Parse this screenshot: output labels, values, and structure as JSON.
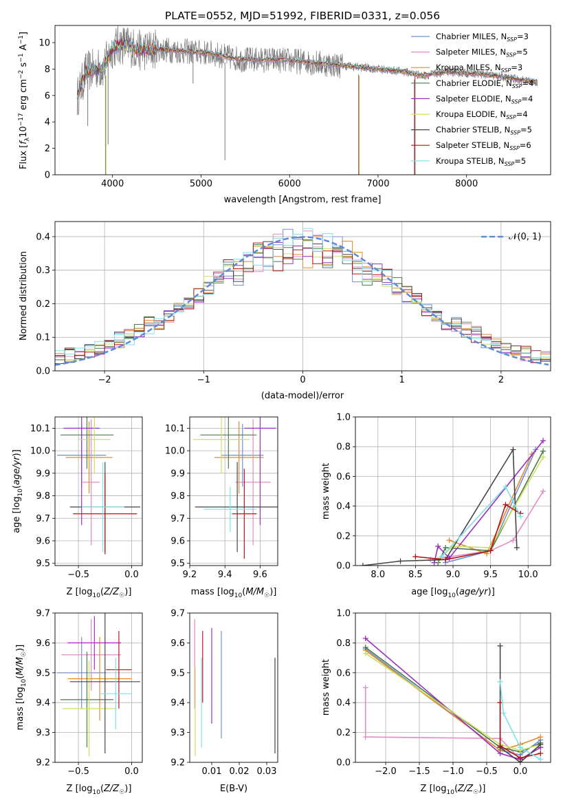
{
  "figure_title": "PLATE=0552, MJD=51992, FIBERID=0331, z=0.056",
  "colors": {
    "Chabrier MILES": "#6f8fd8",
    "Salpeter MILES": "#e38ac4",
    "Kroupa MILES": "#e08a2c",
    "Chabrier ELODIE": "#4a7a4a",
    "Salpeter ELODIE": "#9a2fbf",
    "Kroupa ELODIE": "#cde05a",
    "Chabrier STELIB": "#444444",
    "Salpeter STELIB": "#b01515",
    "Kroupa STELIB": "#7fdfe6",
    "data": "#777777",
    "gauss": "#5b8bd9"
  },
  "chart_data": [
    {
      "id": "spectrum",
      "type": "line",
      "xlabel": "wavelength [Angstrom, rest frame]",
      "ylabel": "Flux [f_λ10^{-17} erg cm^{-2} s^{-1} A^{-1}]",
      "xlim": [
        3350,
        8950
      ],
      "ylim": [
        0,
        11.3
      ],
      "xticks": [
        4000,
        5000,
        6000,
        7000,
        8000
      ],
      "yticks": [
        0,
        2,
        4,
        6,
        8,
        10
      ],
      "legend_position": "upper right",
      "legend": [
        {
          "label": "Chabrier MILES, N",
          "sub": "SSP",
          "eq": "=3"
        },
        {
          "label": "Salpeter MILES, N",
          "sub": "SSP",
          "eq": "=5"
        },
        {
          "label": "Kroupa MILES, N",
          "sub": "SSP",
          "eq": "=3"
        },
        {
          "label": "Chabrier ELODIE, N",
          "sub": "SSP",
          "eq": "=4"
        },
        {
          "label": "Salpeter ELODIE, N",
          "sub": "SSP",
          "eq": "=4"
        },
        {
          "label": "Kroupa ELODIE, N",
          "sub": "SSP",
          "eq": "=4"
        },
        {
          "label": "Chabrier STELIB, N",
          "sub": "SSP",
          "eq": "=5"
        },
        {
          "label": "Salpeter STELIB, N",
          "sub": "SSP",
          "eq": "=6"
        },
        {
          "label": "Kroupa STELIB, N",
          "sub": "SSP",
          "eq": "=5"
        }
      ],
      "continuum": {
        "x": [
          3600,
          3700,
          3800,
          3900,
          4000,
          4100,
          4200,
          4300,
          4500,
          4700,
          4900,
          5100,
          5300,
          5500,
          5800,
          6100,
          6400,
          6700,
          7000,
          7300,
          7500,
          7800,
          8200,
          8600,
          8800
        ],
        "y": [
          5.8,
          7.8,
          8.0,
          8.1,
          9.6,
          9.9,
          9.7,
          9.4,
          9.5,
          9.4,
          9.3,
          9.2,
          8.9,
          8.7,
          8.7,
          8.6,
          8.4,
          8.2,
          8.0,
          7.8,
          7.5,
          7.8,
          7.6,
          7.2,
          7.0
        ]
      },
      "data_lines": [
        {
          "x": 3920,
          "y_from": 0,
          "y_to": 7.5
        },
        {
          "x": 6780,
          "y_from": 0,
          "y_to": 7.6
        },
        {
          "x": 7410,
          "y_from": 0,
          "y_to": 7.2
        },
        {
          "x": 5270,
          "y_from": 1.1,
          "y_to": 8.5
        },
        {
          "x": 4910,
          "y_from": 6.9,
          "y_to": 9.0
        },
        {
          "x": 3720,
          "y_from": 3.7,
          "y_to": 7.2
        },
        {
          "x": 3950,
          "y_from": 2.3,
          "y_to": 8.0
        }
      ]
    },
    {
      "id": "residuals",
      "type": "line",
      "xlabel": "(data-model)/error",
      "ylabel": "Normed distribution",
      "xlim": [
        -2.5,
        2.5
      ],
      "ylim": [
        0,
        0.445
      ],
      "xticks": [
        -2,
        -1,
        0,
        1,
        2
      ],
      "yticks": [
        0.0,
        0.1,
        0.2,
        0.3,
        0.4
      ],
      "grid": true,
      "legend_position": "upper right",
      "gauss_label": "𝒩(0, 1)",
      "bin_width": 0.1
    },
    {
      "id": "age_vs_Z",
      "type": "scatter",
      "xlabel": "Z [log10(Z/Z☉)]",
      "ylabel": "age  [log10(age/yr)]",
      "xlim": [
        -0.72,
        0.1
      ],
      "ylim": [
        9.49,
        10.15
      ],
      "xticks": [
        -0.5,
        0.0
      ],
      "yticks": [
        9.5,
        9.6,
        9.7,
        9.8,
        9.9,
        10.0,
        10.1
      ],
      "grid": true,
      "points": [
        {
          "model": "Chabrier MILES",
          "x": -0.47,
          "xerr": 0.23,
          "y": 9.98,
          "yerr": 0.14
        },
        {
          "model": "Salpeter MILES",
          "x": -0.38,
          "xerr": 0.08,
          "y": 9.86,
          "yerr": 0.28
        },
        {
          "model": "Kroupa MILES",
          "x": -0.4,
          "xerr": 0.22,
          "y": 9.97,
          "yerr": 0.16
        },
        {
          "model": "Chabrier ELODIE",
          "x": -0.42,
          "xerr": 0.25,
          "y": 10.07,
          "yerr": 0.15
        },
        {
          "model": "Salpeter ELODIE",
          "x": -0.47,
          "xerr": 0.17,
          "y": 10.1,
          "yerr": 0.43
        },
        {
          "model": "Kroupa ELODIE",
          "x": -0.35,
          "xerr": 0.15,
          "y": 10.05,
          "yerr": 0.15
        },
        {
          "model": "Chabrier STELIB",
          "x": -0.25,
          "xerr": 0.33,
          "y": 9.75,
          "yerr": 0.2
        },
        {
          "model": "Salpeter STELIB",
          "x": -0.25,
          "xerr": 0.3,
          "y": 9.72,
          "yerr": 0.18
        },
        {
          "model": "Kroupa STELIB",
          "x": -0.27,
          "xerr": 0.2,
          "y": 9.75,
          "yerr": 0.2
        }
      ]
    },
    {
      "id": "age_vs_mass",
      "type": "scatter",
      "xlabel": "mass [log10(M/M☉)]",
      "ylabel": "",
      "xlim": [
        9.2,
        9.7
      ],
      "ylim": [
        9.49,
        10.15
      ],
      "xticks": [
        9.2,
        9.4,
        9.6
      ],
      "yticks": [
        9.5,
        9.6,
        9.7,
        9.8,
        9.9,
        10.0,
        10.1
      ],
      "grid": true,
      "points": [
        {
          "model": "Chabrier MILES",
          "x": 9.5,
          "xerr": 0.12,
          "y": 9.98,
          "yerr": 0.14
        },
        {
          "model": "Salpeter MILES",
          "x": 9.56,
          "xerr": 0.1,
          "y": 9.86,
          "yerr": 0.28
        },
        {
          "model": "Kroupa MILES",
          "x": 9.48,
          "xerr": 0.14,
          "y": 9.97,
          "yerr": 0.16
        },
        {
          "model": "Chabrier ELODIE",
          "x": 9.42,
          "xerr": 0.16,
          "y": 10.07,
          "yerr": 0.15
        },
        {
          "model": "Salpeter ELODIE",
          "x": 9.6,
          "xerr": 0.09,
          "y": 10.1,
          "yerr": 0.43
        },
        {
          "model": "Kroupa ELODIE",
          "x": 9.38,
          "xerr": 0.16,
          "y": 10.05,
          "yerr": 0.15
        },
        {
          "model": "Chabrier STELIB",
          "x": 9.47,
          "xerr": 0.24,
          "y": 9.75,
          "yerr": 0.2
        },
        {
          "model": "Salpeter STELIB",
          "x": 9.51,
          "xerr": 0.07,
          "y": 9.72,
          "yerr": 0.2
        },
        {
          "model": "Kroupa STELIB",
          "x": 9.43,
          "xerr": 0.15,
          "y": 9.74,
          "yerr": 0.1
        }
      ]
    },
    {
      "id": "weight_vs_age",
      "type": "line",
      "xlabel": "age  [log10(age/yr)]",
      "ylabel": "mass weight",
      "xlim": [
        7.7,
        10.3
      ],
      "ylim": [
        0,
        1.0
      ],
      "xticks": [
        8.0,
        8.5,
        9.0,
        9.5,
        10.0
      ],
      "yticks": [
        0.0,
        0.2,
        0.4,
        0.6,
        0.8,
        1.0
      ],
      "grid": true,
      "series": [
        {
          "model": "Chabrier MILES",
          "x": [
            8.9,
            9.5,
            10.1
          ],
          "y": [
            0.02,
            0.1,
            0.78
          ]
        },
        {
          "model": "Salpeter MILES",
          "x": [
            8.7,
            9.5,
            9.8,
            10.2
          ],
          "y": [
            0.04,
            0.1,
            0.17,
            0.5
          ]
        },
        {
          "model": "Kroupa MILES",
          "x": [
            8.95,
            9.45,
            10.05
          ],
          "y": [
            0.17,
            0.08,
            0.75
          ]
        },
        {
          "model": "Chabrier ELODIE",
          "x": [
            8.8,
            8.9,
            9.5,
            10.2
          ],
          "y": [
            0.02,
            0.12,
            0.1,
            0.77
          ]
        },
        {
          "model": "Salpeter ELODIE",
          "x": [
            8.75,
            8.8,
            8.95,
            10.2
          ],
          "y": [
            0.02,
            0.13,
            0.05,
            0.84
          ]
        },
        {
          "model": "Kroupa ELODIE",
          "x": [
            8.8,
            9.0,
            9.5,
            10.2
          ],
          "y": [
            0.04,
            0.13,
            0.12,
            0.73
          ]
        },
        {
          "model": "Chabrier STELIB",
          "x": [
            7.8,
            8.3,
            8.9,
            9.8,
            9.85
          ],
          "y": [
            0.0,
            0.03,
            0.04,
            0.78,
            0.12
          ]
        },
        {
          "model": "Salpeter STELIB",
          "x": [
            8.5,
            8.9,
            9.5,
            9.7,
            9.9
          ],
          "y": [
            0.06,
            0.04,
            0.1,
            0.41,
            0.35
          ]
        },
        {
          "model": "Kroupa STELIB",
          "x": [
            8.85,
            9.7,
            9.9
          ],
          "y": [
            0.06,
            0.53,
            0.33
          ]
        }
      ]
    },
    {
      "id": "mass_vs_Z",
      "type": "scatter",
      "xlabel": "Z [log10(Z/Z☉)]",
      "ylabel": "mass [log10(M/M☉)]",
      "xlim": [
        -0.72,
        0.1
      ],
      "ylim": [
        9.2,
        9.7
      ],
      "xticks": [
        -0.5,
        0.0
      ],
      "yticks": [
        9.2,
        9.3,
        9.4,
        9.5,
        9.6,
        9.7
      ],
      "grid": true,
      "points": [
        {
          "model": "Chabrier MILES",
          "x": -0.47,
          "xerr": 0.23,
          "y": 9.5,
          "yerr": 0.12
        },
        {
          "model": "Salpeter MILES",
          "x": -0.38,
          "xerr": 0.28,
          "y": 9.56,
          "yerr": 0.12
        },
        {
          "model": "Kroupa MILES",
          "x": -0.3,
          "xerr": 0.3,
          "y": 9.48,
          "yerr": 0.14
        },
        {
          "model": "Chabrier ELODIE",
          "x": -0.42,
          "xerr": 0.25,
          "y": 9.41,
          "yerr": 0.16
        },
        {
          "model": "Salpeter ELODIE",
          "x": -0.35,
          "xerr": 0.25,
          "y": 9.6,
          "yerr": 0.09
        },
        {
          "model": "Kroupa ELODIE",
          "x": -0.4,
          "xerr": 0.25,
          "y": 9.38,
          "yerr": 0.16
        },
        {
          "model": "Chabrier STELIB",
          "x": -0.25,
          "xerr": 0.33,
          "y": 9.47,
          "yerr": 0.24
        },
        {
          "model": "Salpeter STELIB",
          "x": -0.12,
          "xerr": 0.12,
          "y": 9.51,
          "yerr": 0.13
        },
        {
          "model": "Kroupa STELIB",
          "x": -0.15,
          "xerr": 0.15,
          "y": 9.43,
          "yerr": 0.12
        }
      ]
    },
    {
      "id": "mass_vs_ebv",
      "type": "scatter",
      "xlabel": "E(B-V)",
      "ylabel": "",
      "xlim": [
        0.002,
        0.034
      ],
      "ylim": [
        9.2,
        9.7
      ],
      "xticks": [
        0.01,
        0.02,
        0.03
      ],
      "yticks": [
        9.2,
        9.3,
        9.4,
        9.5,
        9.6,
        9.7
      ],
      "grid": false,
      "points": [
        {
          "model": "Chabrier MILES",
          "x": 0.0135,
          "y": 9.46,
          "yerr": 0.18
        },
        {
          "model": "Salpeter MILES",
          "x": 0.0038,
          "y": 9.53,
          "yerr": 0.15
        },
        {
          "model": "Salpeter ELODIE",
          "x": 0.01,
          "y": 9.49,
          "yerr": 0.16
        },
        {
          "model": "Kroupa ELODIE",
          "x": 0.004,
          "y": 9.37,
          "yerr": 0.15
        },
        {
          "model": "Chabrier STELIB",
          "x": 0.033,
          "y": 9.39,
          "yerr": 0.16
        },
        {
          "model": "Salpeter STELIB",
          "x": 0.0067,
          "y": 9.52,
          "yerr": 0.12
        },
        {
          "model": "Kroupa STELIB",
          "x": 0.0063,
          "y": 9.4,
          "yerr": 0.15
        }
      ]
    },
    {
      "id": "weight_vs_Z",
      "type": "line",
      "xlabel": "Z [log10(Z/Z☉)]",
      "ylabel": "mass weight",
      "xlim": [
        -2.45,
        0.45
      ],
      "ylim": [
        0,
        1.0
      ],
      "xticks": [
        -2.0,
        -1.5,
        -1.0,
        -0.5,
        0.0
      ],
      "yticks": [
        0.0,
        0.2,
        0.4,
        0.6,
        0.8,
        1.0
      ],
      "grid": true,
      "series": [
        {
          "model": "Chabrier MILES",
          "x": [
            -2.3,
            -0.3,
            0.0,
            0.3
          ],
          "y": [
            0.76,
            0.08,
            0.05,
            0.15
          ]
        },
        {
          "model": "Salpeter MILES",
          "x": [
            -2.3,
            -2.3,
            -0.3,
            0.0,
            0.3
          ],
          "y": [
            0.5,
            0.17,
            0.16,
            0.02,
            0.1
          ]
        },
        {
          "model": "Kroupa MILES",
          "x": [
            -2.3,
            -0.3,
            0.0,
            0.3
          ],
          "y": [
            0.75,
            0.08,
            0.12,
            0.17
          ]
        },
        {
          "model": "Chabrier ELODIE",
          "x": [
            -2.3,
            -0.3,
            0.0,
            0.3
          ],
          "y": [
            0.77,
            0.1,
            0.07,
            0.13
          ]
        },
        {
          "model": "Salpeter ELODIE",
          "x": [
            -2.3,
            -0.3,
            0.0,
            0.3
          ],
          "y": [
            0.83,
            0.06,
            0.02,
            0.1
          ]
        },
        {
          "model": "Kroupa ELODIE",
          "x": [
            -2.3,
            -0.3,
            0.0,
            0.3
          ],
          "y": [
            0.73,
            0.12,
            0.08,
            0.12
          ]
        },
        {
          "model": "Chabrier STELIB",
          "x": [
            -0.3,
            -0.3,
            0.0,
            0.3
          ],
          "y": [
            0.78,
            0.1,
            0.0,
            0.12
          ]
        },
        {
          "model": "Salpeter STELIB",
          "x": [
            -0.3,
            -0.3,
            0.0,
            0.3
          ],
          "y": [
            0.4,
            0.11,
            0.03,
            0.06
          ]
        },
        {
          "model": "Kroupa STELIB",
          "x": [
            -0.3,
            -0.25,
            0.0,
            0.3
          ],
          "y": [
            0.54,
            0.33,
            0.1,
            0.02
          ]
        }
      ]
    }
  ]
}
